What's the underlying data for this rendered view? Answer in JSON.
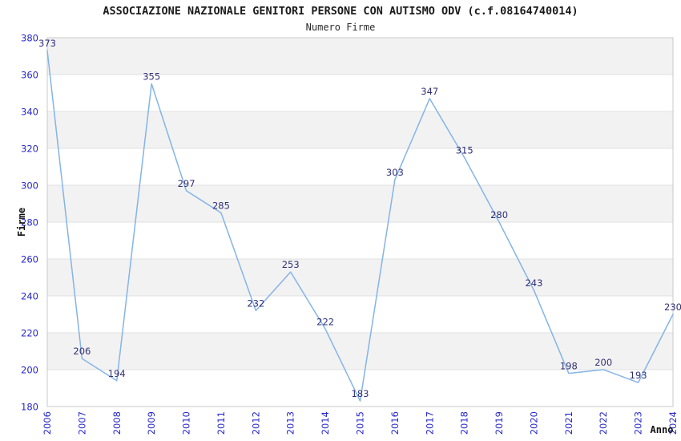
{
  "chart_data": {
    "type": "line",
    "title": "ASSOCIAZIONE NAZIONALE GENITORI PERSONE CON AUTISMO ODV (c.f.08164740014)",
    "subtitle": "Numero Firme",
    "xlabel": "Anno",
    "ylabel": "Firme",
    "categories": [
      "2006",
      "2007",
      "2008",
      "2009",
      "2010",
      "2011",
      "2012",
      "2013",
      "2014",
      "2015",
      "2016",
      "2017",
      "2018",
      "2019",
      "2020",
      "2021",
      "2022",
      "2023",
      "2024"
    ],
    "values": [
      373,
      206,
      194,
      355,
      297,
      285,
      232,
      253,
      222,
      183,
      303,
      347,
      315,
      280,
      243,
      198,
      200,
      193,
      230
    ],
    "ylim": [
      180,
      380
    ],
    "ytick_step": 20,
    "grid": "horizontal-bands-on",
    "legend": "none",
    "data_labels": "shown-above-points",
    "colors": {
      "line": "#84b4e8",
      "tick_label": "#2626cc",
      "data_label": "#303078",
      "band_gray": "#f2f2f2",
      "band_white": "#ffffff",
      "grid_line": "#e0e0e0",
      "plot_border": "#c9c9c9",
      "title_text": "#1a1a1a"
    }
  }
}
